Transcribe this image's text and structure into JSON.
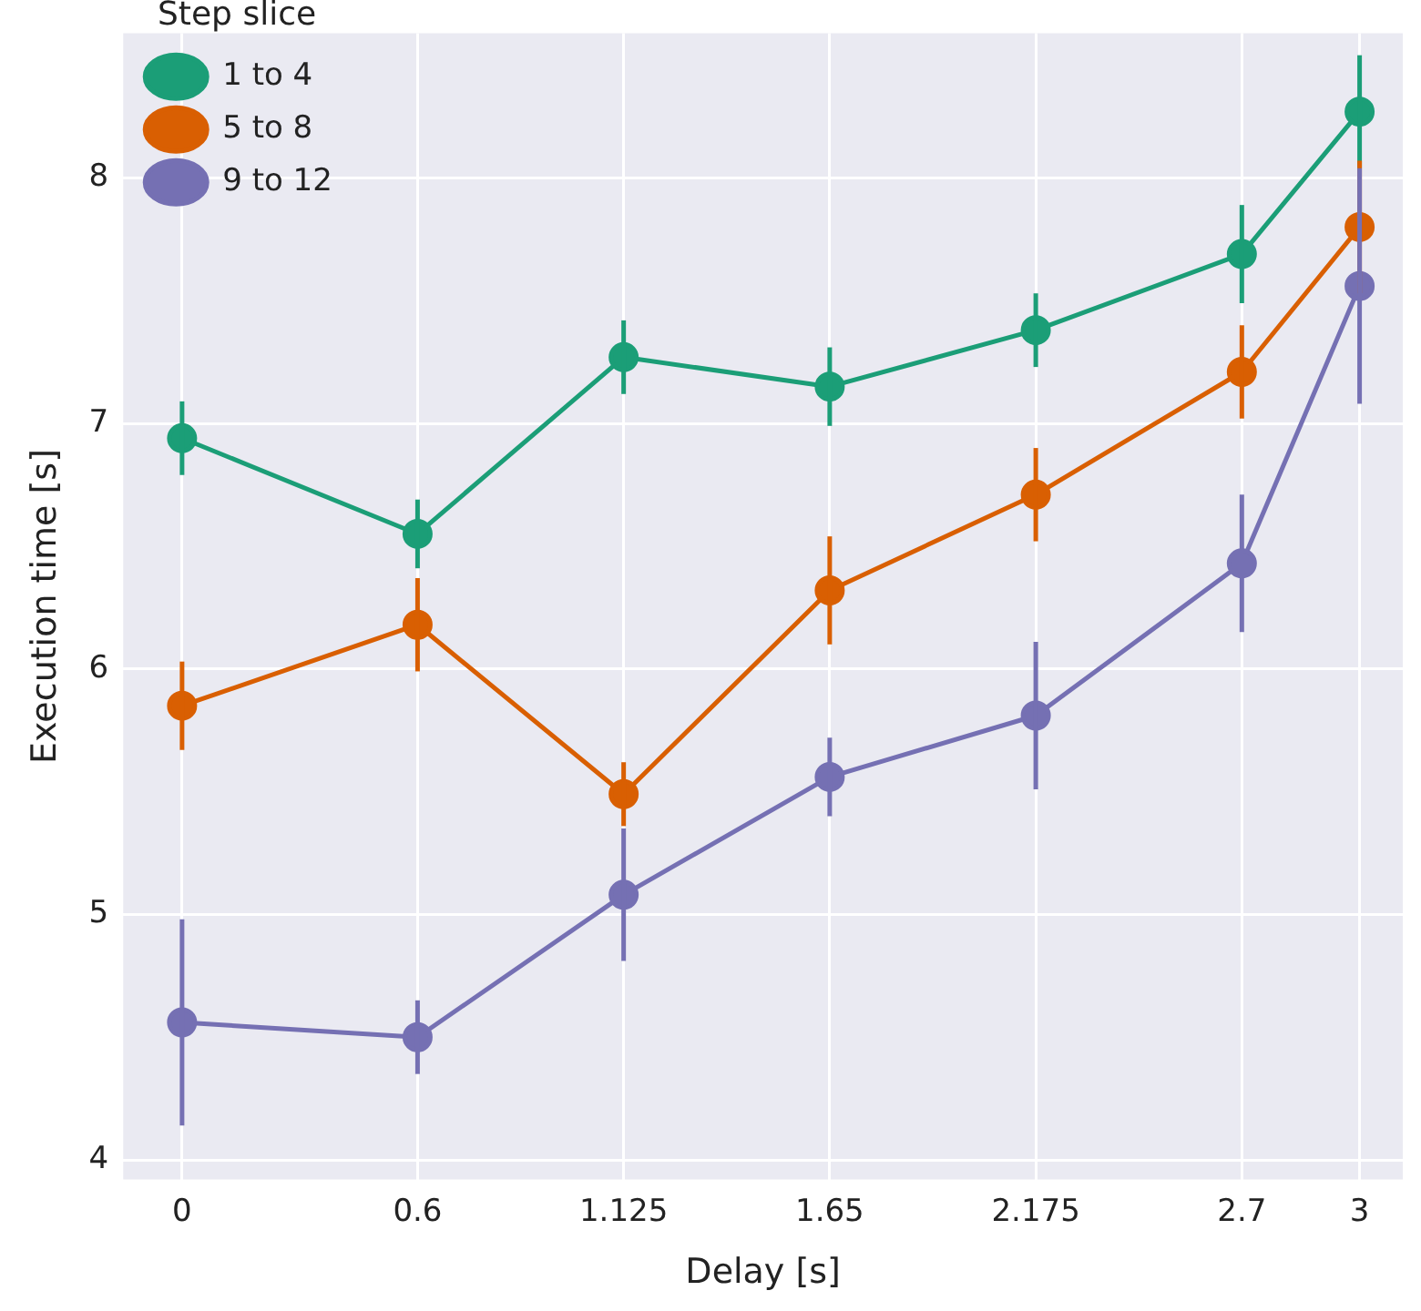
{
  "chart_data": {
    "type": "line",
    "xlabel": "Delay [s]",
    "ylabel": "Execution time [s]",
    "legend_title": "Step slice",
    "legend": "top left",
    "grid": true,
    "marker": "circle",
    "line_style": "solid",
    "x": [
      0,
      0.6,
      1.125,
      1.65,
      2.175,
      2.7,
      3
    ],
    "xlim": [
      -0.15,
      3.11
    ],
    "xticks": [
      0,
      0.6,
      1.125,
      1.65,
      2.175,
      2.7,
      3
    ],
    "ylim": [
      3.92,
      8.59
    ],
    "yticks": [
      4,
      5,
      6,
      7,
      8
    ],
    "series": [
      {
        "name": "1 to 4",
        "color": "#1b9e77",
        "values": [
          6.94,
          6.55,
          7.27,
          7.15,
          7.38,
          7.69,
          8.27
        ],
        "errors": [
          0.15,
          0.14,
          0.15,
          0.16,
          0.15,
          0.2,
          0.23
        ]
      },
      {
        "name": "5 to 8",
        "color": "#d95f02",
        "values": [
          5.85,
          6.18,
          5.49,
          6.32,
          6.71,
          7.21,
          7.8
        ],
        "errors": [
          0.18,
          0.19,
          0.13,
          0.22,
          0.19,
          0.19,
          0.27
        ]
      },
      {
        "name": "9 to 12",
        "color": "#7570b3",
        "values": [
          4.56,
          4.5,
          5.08,
          5.56,
          5.81,
          6.43,
          7.56
        ],
        "errors": [
          0.42,
          0.15,
          0.27,
          0.16,
          0.3,
          0.28,
          0.48
        ]
      }
    ]
  }
}
